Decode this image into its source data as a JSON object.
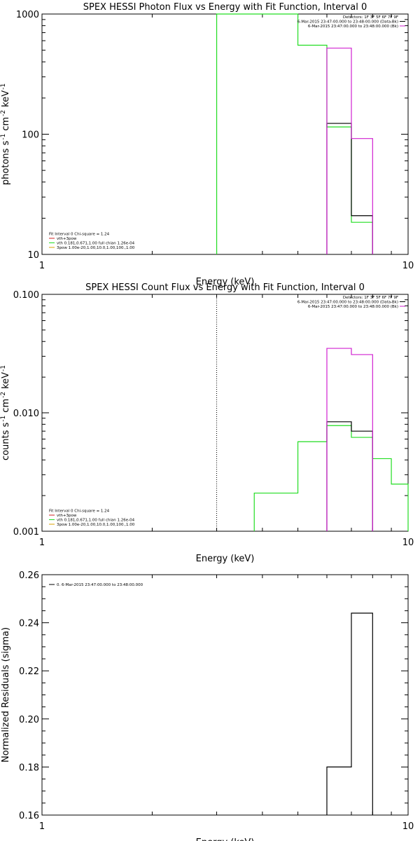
{
  "colors": {
    "black": "#000000",
    "green": "#22dd22",
    "magenta": "#d020d0",
    "red": "#d02020",
    "orange": "#d8a000",
    "dotted": "#000000"
  },
  "chart_data": [
    {
      "type": "line",
      "subtype": "histogram",
      "title": "SPEX HESSI Photon Flux vs Energy with Fit Function, Interval 0",
      "xlabel": "Energy (keV)",
      "ylabel": "photons s",
      "ylabel_extra": [
        "-1",
        "cm",
        "-2",
        "keV",
        "-1"
      ],
      "xscale": "log",
      "yscale": "log",
      "xlim": [
        1,
        10
      ],
      "ylim": [
        10,
        1000
      ],
      "x_ticks": [
        {
          "v": 1,
          "label": "1"
        },
        {
          "v": 10,
          "label": "10"
        }
      ],
      "y_ticks": [
        {
          "v": 10,
          "label": "10"
        },
        {
          "v": 100,
          "label": "100"
        },
        {
          "v": 1000,
          "label": "1000"
        }
      ],
      "grid": false,
      "vlines": [
        {
          "x": 3.0,
          "color": "green",
          "style": "solid"
        }
      ],
      "legend_right": {
        "placement": "top-right",
        "entries": [
          {
            "text": "Detectors: 1F 3F 5F 6F 7F 9F",
            "color": null
          },
          {
            "text": "6-Mar-2015 23:47:00.000 to 23:48:00.000 (Data-Bk)",
            "color": "black"
          },
          {
            "text": "6-Mar-2015 23:47:00.000 to 23:48:00.000 (Bk)",
            "color": "magenta"
          }
        ]
      },
      "legend_left": {
        "placement": "bottom-left",
        "entries": [
          {
            "text": "Fit Interval 0   Chi-square = 1.24",
            "color": null
          },
          {
            "text": "vth+3pow",
            "color": "red"
          },
          {
            "text": "vth 0.181,0.671,1.00  full chian 1.26e-04",
            "color": "green"
          },
          {
            "text": "3pow 1.00e-20,1.00,10.0,1.00,100.,1.00",
            "color": "orange"
          }
        ]
      },
      "series": [
        {
          "name": "6-Mar-2015 23:47:00.000 to 23:48:00.000 (Data-Bk)",
          "color": "black",
          "edges": [
            6.0,
            7.0,
            8.0
          ],
          "values": [
            123,
            21
          ]
        },
        {
          "name": "6-Mar-2015 23:47:00.000 to 23:48:00.000 (Bk)",
          "color": "magenta",
          "edges": [
            6.0,
            7.0,
            8.0
          ],
          "values": [
            520,
            92
          ]
        },
        {
          "name": "vth+3pow",
          "color": "green",
          "edges": [
            3.0,
            5.0,
            6.0,
            7.0,
            8.0
          ],
          "values": [
            1000,
            550,
            115,
            18.5
          ]
        }
      ]
    },
    {
      "type": "line",
      "subtype": "histogram",
      "title": "SPEX HESSI Count Flux vs Energy with Fit Function, Interval 0",
      "xlabel": "Energy (keV)",
      "ylabel": "counts s",
      "ylabel_extra": [
        "-1",
        "cm",
        "-2",
        "keV",
        "-1"
      ],
      "xscale": "log",
      "yscale": "log",
      "xlim": [
        1,
        10
      ],
      "ylim": [
        0.001,
        0.1
      ],
      "x_ticks": [
        {
          "v": 1,
          "label": "1"
        },
        {
          "v": 10,
          "label": "10"
        }
      ],
      "y_ticks": [
        {
          "v": 0.001,
          "label": "0.001"
        },
        {
          "v": 0.01,
          "label": "0.010"
        },
        {
          "v": 0.1,
          "label": "0.100"
        }
      ],
      "grid": false,
      "vlines": [
        {
          "x": 3.0,
          "color": "dotted",
          "style": "dotted"
        }
      ],
      "legend_right": {
        "placement": "top-right",
        "entries": [
          {
            "text": "Detectors: 1F 3F 5F 6F 7F 9F",
            "color": null
          },
          {
            "text": "6-Mar-2015 23:47:00.000 to 23:48:00.000 (Data-Bk)",
            "color": "black"
          },
          {
            "text": "6-Mar-2015 23:47:00.000 to 23:48:00.000 (Bk)",
            "color": "magenta"
          }
        ]
      },
      "legend_left": {
        "placement": "bottom-left",
        "entries": [
          {
            "text": "Fit Interval 0   Chi-square = 1.24",
            "color": null
          },
          {
            "text": "vth+3pow",
            "color": "red"
          },
          {
            "text": "vth 0.181,0.671,1.00  full chian 1.26e-04",
            "color": "green"
          },
          {
            "text": "3pow 1.00e-20,1.00,10.0,1.00,100.,1.00",
            "color": "orange"
          }
        ]
      },
      "series": [
        {
          "name": "6-Mar-2015 23:47:00.000 to 23:48:00.000 (Data-Bk)",
          "color": "black",
          "edges": [
            6.0,
            7.0,
            8.0
          ],
          "values": [
            0.0084,
            0.007
          ]
        },
        {
          "name": "6-Mar-2015 23:47:00.000 to 23:48:00.000 (Bk)",
          "color": "magenta",
          "edges": [
            6.0,
            7.0,
            8.0
          ],
          "values": [
            0.035,
            0.031
          ]
        },
        {
          "name": "vth+3pow",
          "color": "green",
          "edges": [
            3.8,
            4.0,
            5.0,
            6.0,
            7.0,
            8.0,
            9.0,
            10.0
          ],
          "values": [
            0.0021,
            0.0021,
            0.0057,
            0.0078,
            0.0062,
            0.0041,
            0.0025
          ]
        }
      ]
    },
    {
      "type": "line",
      "subtype": "histogram",
      "title": "",
      "xlabel": "Energy (keV)",
      "ylabel": "Normalized Residuals (sigma)",
      "ylabel_extra": [],
      "xscale": "log",
      "yscale": "linear",
      "xlim": [
        1,
        10
      ],
      "ylim": [
        0.16,
        0.26
      ],
      "x_ticks": [
        {
          "v": 1,
          "label": "1"
        },
        {
          "v": 10,
          "label": "10"
        }
      ],
      "y_ticks": [
        {
          "v": 0.16,
          "label": "0.16"
        },
        {
          "v": 0.18,
          "label": "0.18"
        },
        {
          "v": 0.2,
          "label": "0.20"
        },
        {
          "v": 0.22,
          "label": "0.22"
        },
        {
          "v": 0.24,
          "label": "0.24"
        },
        {
          "v": 0.26,
          "label": "0.26"
        }
      ],
      "grid": false,
      "vlines": [],
      "legend_right": null,
      "legend_left": {
        "placement": "top-left",
        "entries": [
          {
            "text": "0. 6-Mar-2015 23:47:00.000 to 23:48:00.000",
            "color": "black"
          }
        ]
      },
      "series": [
        {
          "name": "0. 6-Mar-2015 23:47:00.000 to 23:48:00.000",
          "color": "black",
          "edges": [
            6.0,
            7.0,
            8.0
          ],
          "values": [
            0.18,
            0.244
          ]
        }
      ]
    }
  ]
}
